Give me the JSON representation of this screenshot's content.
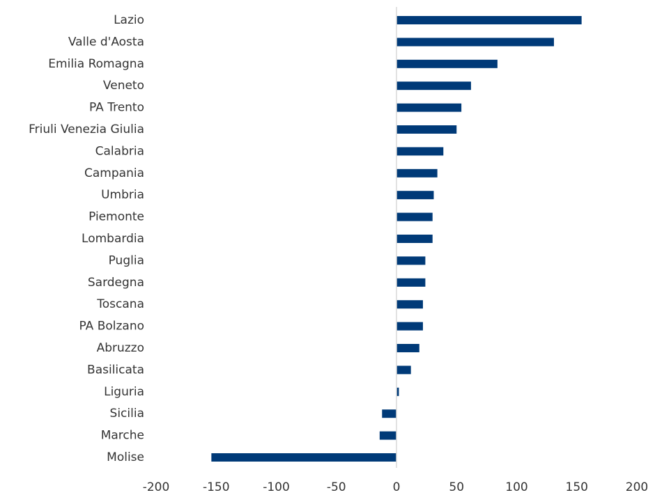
{
  "chart_data": {
    "type": "bar",
    "orientation": "horizontal",
    "title": "",
    "xlabel": "",
    "ylabel": "",
    "xlim": [
      -200,
      200
    ],
    "x_ticks": [
      "-200",
      "-150",
      "-100",
      "-50",
      "0",
      "50",
      "100",
      "150",
      "200"
    ],
    "grid": false,
    "bar_color": "#003A78",
    "axis_color": "#D9D9D9",
    "categories": [
      "Lazio",
      "Valle d'Aosta",
      "Emilia Romagna",
      "Veneto",
      "PA Trento",
      "Friuli Venezia Giulia",
      "Calabria",
      "Campania",
      "Umbria",
      "Piemonte",
      "Lombardia",
      "Puglia",
      "Sardegna",
      "Toscana",
      "PA Bolzano",
      "Abruzzo",
      "Basilicata",
      "Liguria",
      "Sicilia",
      "Marche",
      "Molise"
    ],
    "values": [
      154,
      131,
      84,
      62,
      54,
      50,
      39,
      34,
      31,
      30,
      30,
      24,
      24,
      22,
      22,
      19,
      12,
      2,
      -12,
      -14,
      -154
    ]
  }
}
